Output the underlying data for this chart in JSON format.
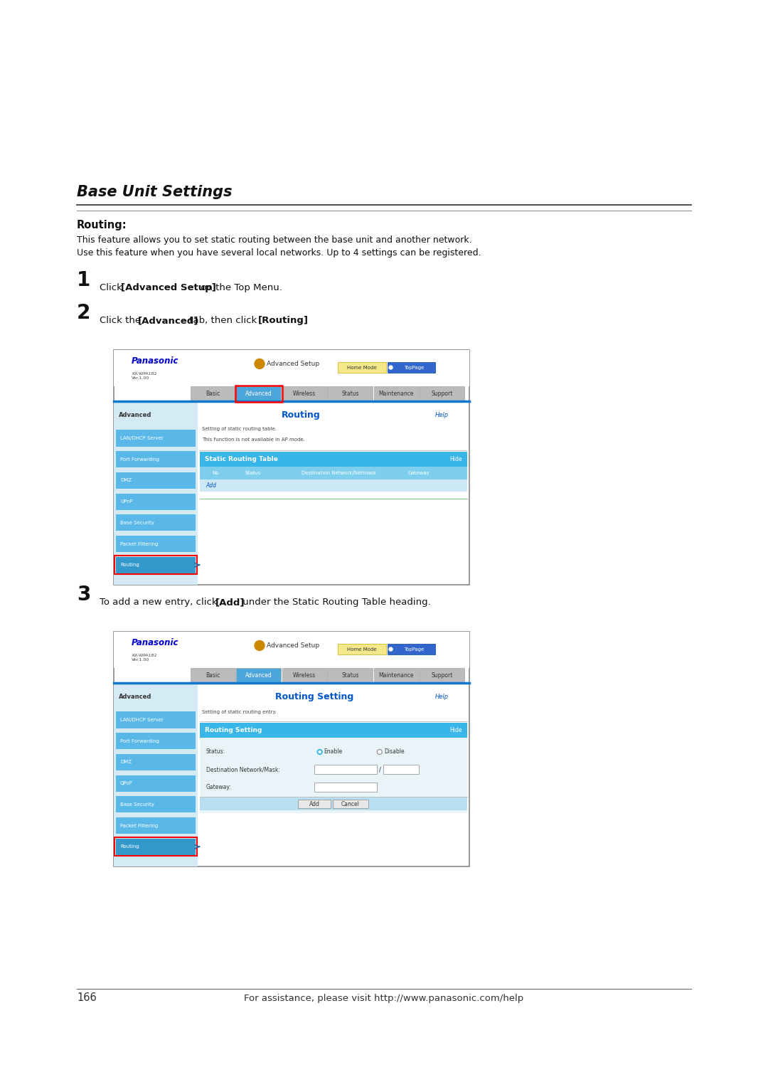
{
  "bg_color": "#ffffff",
  "title": "Base Unit Settings",
  "section_heading": "Routing:",
  "desc_line1": "This feature allows you to set static routing between the base unit and another network.",
  "desc_line2": "Use this feature when you have several local networks. Up to 4 settings can be registered.",
  "step1_text1": "Click ",
  "step1_text2": "[Advanced Setup]",
  "step1_text3": " on the Top Menu.",
  "step2_text1": "Click the ",
  "step2_text2": "[Advanced]",
  "step2_text3": " tab, then click ",
  "step2_text4": "[Routing]",
  "step2_text5": ".",
  "step3_text1": "To add a new entry, click ",
  "step3_text2": "[Add]",
  "step3_text3": " under the Static Routing Table heading.",
  "panasonic_blue": "#0000cc",
  "light_blue_bg": "#d4eaf5",
  "sidebar_blue": "#5ab8e8",
  "routing_selected": "#3399cc",
  "header_blue": "#38b6e8",
  "col_blue": "#7ecfed",
  "add_row_bg": "#cce8f4",
  "form_bg": "#e8f4f8",
  "btn_bg": "#b8dff0",
  "nav_active": "#4da6d9",
  "nav_inactive": "#bbbbbb",
  "home_mode_bg": "#f5e88a",
  "toppage_bg": "#3366cc",
  "orange_circle": "#cc8800",
  "footer_text": "For assistance, please visit http://www.panasonic.com/help",
  "page_num": "166",
  "model_text": "KX-WPA182\nVer.1.00",
  "sidebar_items_1": [
    "LAN/DHCP Server",
    "Port Forwarding",
    "DMZ",
    "UPnP",
    "Base Security",
    "Packet Filtering",
    "Routing"
  ],
  "sidebar_items_2": [
    "LAN/DHCP Server",
    "Port Forwarding",
    "DMZ",
    "QPoP",
    "Base Security",
    "Packet Filtering",
    "Routing"
  ]
}
